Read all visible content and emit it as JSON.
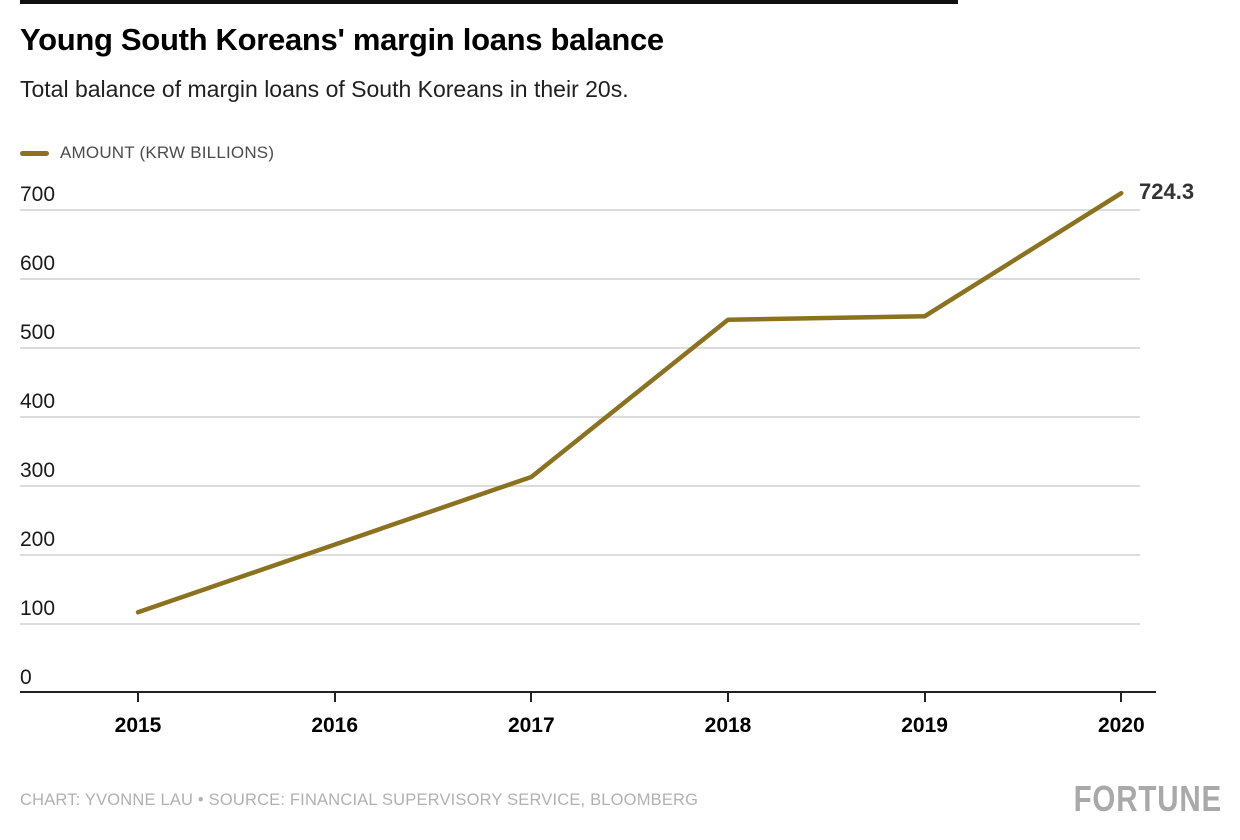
{
  "header": {
    "title": "Young South Koreans' margin loans balance",
    "subtitle": "Total balance of margin loans of South Koreans in their 20s."
  },
  "legend": {
    "label": "AMOUNT (KRW BILLIONS)",
    "color": "#8a721f"
  },
  "chart_data": {
    "type": "line",
    "x": [
      2015,
      2016,
      2017,
      2018,
      2019,
      2020
    ],
    "series": [
      {
        "name": "AMOUNT (KRW BILLIONS)",
        "values": [
          117,
          215,
          313,
          541,
          546,
          724.3
        ],
        "color": "#8a721f"
      }
    ],
    "end_label": "724.3",
    "title": "Young South Koreans' margin loans balance",
    "subtitle": "Total balance of margin loans of South Koreans in their 20s.",
    "xlabel": "",
    "ylabel": "",
    "ylim": [
      0,
      700
    ],
    "yticks": [
      0,
      100,
      200,
      300,
      400,
      500,
      600,
      700
    ],
    "grid": "horizontal",
    "gridline_color": "#dcdcdc",
    "legend_position": "top-left"
  },
  "footer": {
    "credit": "CHART: YVONNE LAU • SOURCE: FINANCIAL SUPERVISORY SERVICE, BLOOMBERG",
    "logo": "FORTUNE"
  }
}
